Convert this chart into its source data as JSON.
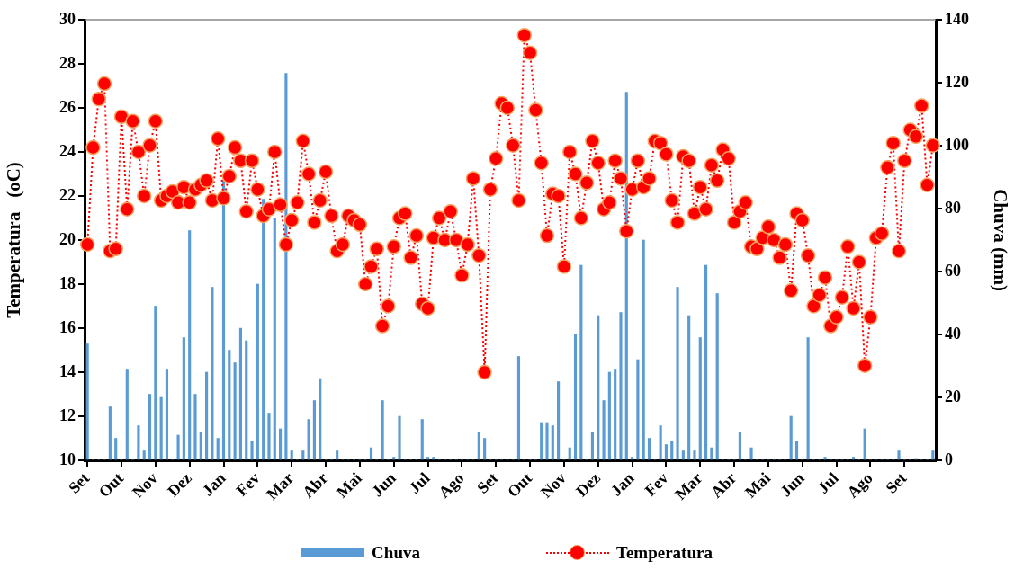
{
  "chart_data": {
    "type": "bar",
    "ylabel": "Temperatura   (oC)",
    "y2label": "Chuva (mm)",
    "categories": [
      "Set",
      null,
      null,
      null,
      null,
      null,
      "Out",
      null,
      null,
      null,
      null,
      null,
      "Nov",
      null,
      null,
      null,
      null,
      null,
      "Dez",
      null,
      null,
      null,
      null,
      null,
      "Jan",
      null,
      null,
      null,
      null,
      null,
      "Fev",
      null,
      null,
      null,
      null,
      null,
      "Mar",
      null,
      null,
      null,
      null,
      null,
      "Abr",
      null,
      null,
      null,
      null,
      null,
      "Mai",
      null,
      null,
      null,
      null,
      null,
      "Jun",
      null,
      null,
      null,
      null,
      null,
      "Jul",
      null,
      null,
      null,
      null,
      null,
      "Ago",
      null,
      null,
      null,
      null,
      null,
      "Set",
      null,
      null,
      null,
      null,
      null,
      "Out",
      null,
      null,
      null,
      null,
      null,
      "Nov",
      null,
      null,
      null,
      null,
      null,
      "Dez",
      null,
      null,
      null,
      null,
      null,
      "Jan",
      null,
      null,
      null,
      null,
      null,
      "Fev",
      null,
      null,
      null,
      null,
      null,
      "Mar",
      null,
      null,
      null,
      null,
      null,
      "Abr",
      null,
      null,
      null,
      null,
      null,
      "Mai",
      null,
      null,
      null,
      null,
      null,
      "Jun",
      null,
      null,
      null,
      null,
      null,
      "Jul",
      null,
      null,
      null,
      null,
      null,
      "Ago",
      null,
      null,
      null,
      null,
      null,
      "Set",
      null,
      null,
      null,
      null,
      null
    ],
    "series": [
      {
        "name": "Chuva",
        "axis": "y2",
        "color": "#5b9bd5",
        "values": [
          37,
          0,
          0,
          0,
          17,
          7,
          0,
          29,
          0,
          11,
          3,
          21,
          49,
          20,
          29,
          0,
          8,
          39,
          73,
          21,
          9,
          28,
          55,
          7,
          89,
          35,
          31,
          42,
          38,
          6,
          56,
          83,
          15,
          77,
          10,
          123,
          3,
          0,
          3,
          13,
          19,
          26,
          0,
          0.5,
          3,
          0,
          0,
          0,
          0,
          0,
          4,
          0,
          19,
          0,
          1,
          14,
          0,
          0,
          0,
          13,
          1,
          1,
          0,
          0,
          0,
          0,
          0,
          0,
          0,
          9,
          7,
          0,
          0,
          0,
          0,
          0,
          33,
          0,
          0,
          0,
          12,
          12,
          11,
          25,
          0,
          4,
          40,
          62,
          0,
          9,
          46,
          19,
          28,
          29,
          47,
          117,
          1,
          32,
          70,
          7,
          0,
          11,
          5,
          6,
          55,
          3,
          46,
          3,
          39,
          62,
          4,
          53,
          0,
          0,
          0,
          9,
          0,
          4,
          0,
          0,
          0,
          0,
          0,
          0,
          14,
          6,
          0,
          39,
          0,
          0,
          1,
          0,
          0,
          0,
          0,
          1,
          0,
          10,
          0,
          0,
          0,
          0,
          0,
          3,
          0,
          0,
          0.6,
          0,
          0,
          3
        ]
      },
      {
        "name": "Temperatura",
        "type": "line",
        "axis": "y",
        "color": "#ff0000",
        "values": [
          19.8,
          24.2,
          26.4,
          27.1,
          19.5,
          19.6,
          25.6,
          21.4,
          25.4,
          24.0,
          22.0,
          24.3,
          25.4,
          21.8,
          22.0,
          22.2,
          21.7,
          22.4,
          21.7,
          22.3,
          22.5,
          22.7,
          21.8,
          24.6,
          21.9,
          22.9,
          24.2,
          23.6,
          21.3,
          23.6,
          22.3,
          21.1,
          21.4,
          24.0,
          21.6,
          19.8,
          20.9,
          21.7,
          24.5,
          23.0,
          20.8,
          21.8,
          23.1,
          21.1,
          19.5,
          19.8,
          21.1,
          20.9,
          20.7,
          18.0,
          18.8,
          19.6,
          16.1,
          17.0,
          19.7,
          21.0,
          21.2,
          19.2,
          20.2,
          17.1,
          16.9,
          20.1,
          21.0,
          20.0,
          21.3,
          20.0,
          18.4,
          19.8,
          22.8,
          19.3,
          14.0,
          22.3,
          23.7,
          26.2,
          26.0,
          24.3,
          21.8,
          29.3,
          28.5,
          25.9,
          23.5,
          20.2,
          22.1,
          22.0,
          18.8,
          24.0,
          23.0,
          21.0,
          22.6,
          24.5,
          23.5,
          21.4,
          21.7,
          23.6,
          22.8,
          20.4,
          22.3,
          23.6,
          22.4,
          22.8,
          24.5,
          24.4,
          23.9,
          21.8,
          20.8,
          23.8,
          23.6,
          21.2,
          22.4,
          21.4,
          23.4,
          22.7,
          24.1,
          23.7,
          20.8,
          21.3,
          21.7,
          19.7,
          19.6,
          20.1,
          20.6,
          20.0,
          19.2,
          19.8,
          17.7,
          21.2,
          20.9,
          19.3,
          17.0,
          17.5,
          18.3,
          16.1,
          16.5,
          17.4,
          19.7,
          16.9,
          19.0,
          14.3,
          16.5,
          20.1,
          20.3,
          23.3,
          24.4,
          19.5,
          23.6,
          25.0,
          24.7,
          26.1,
          22.5,
          24.3
        ]
      }
    ],
    "ylim": [
      10,
      30
    ],
    "yticks": [
      10,
      12,
      14,
      16,
      18,
      20,
      22,
      24,
      26,
      28,
      30
    ],
    "y2lim": [
      0,
      140
    ],
    "y2ticks": [
      0,
      20,
      40,
      60,
      80,
      100,
      120,
      140
    ],
    "marker": "circle",
    "line_style": "dotted",
    "legend": "bottom",
    "grid": false
  }
}
